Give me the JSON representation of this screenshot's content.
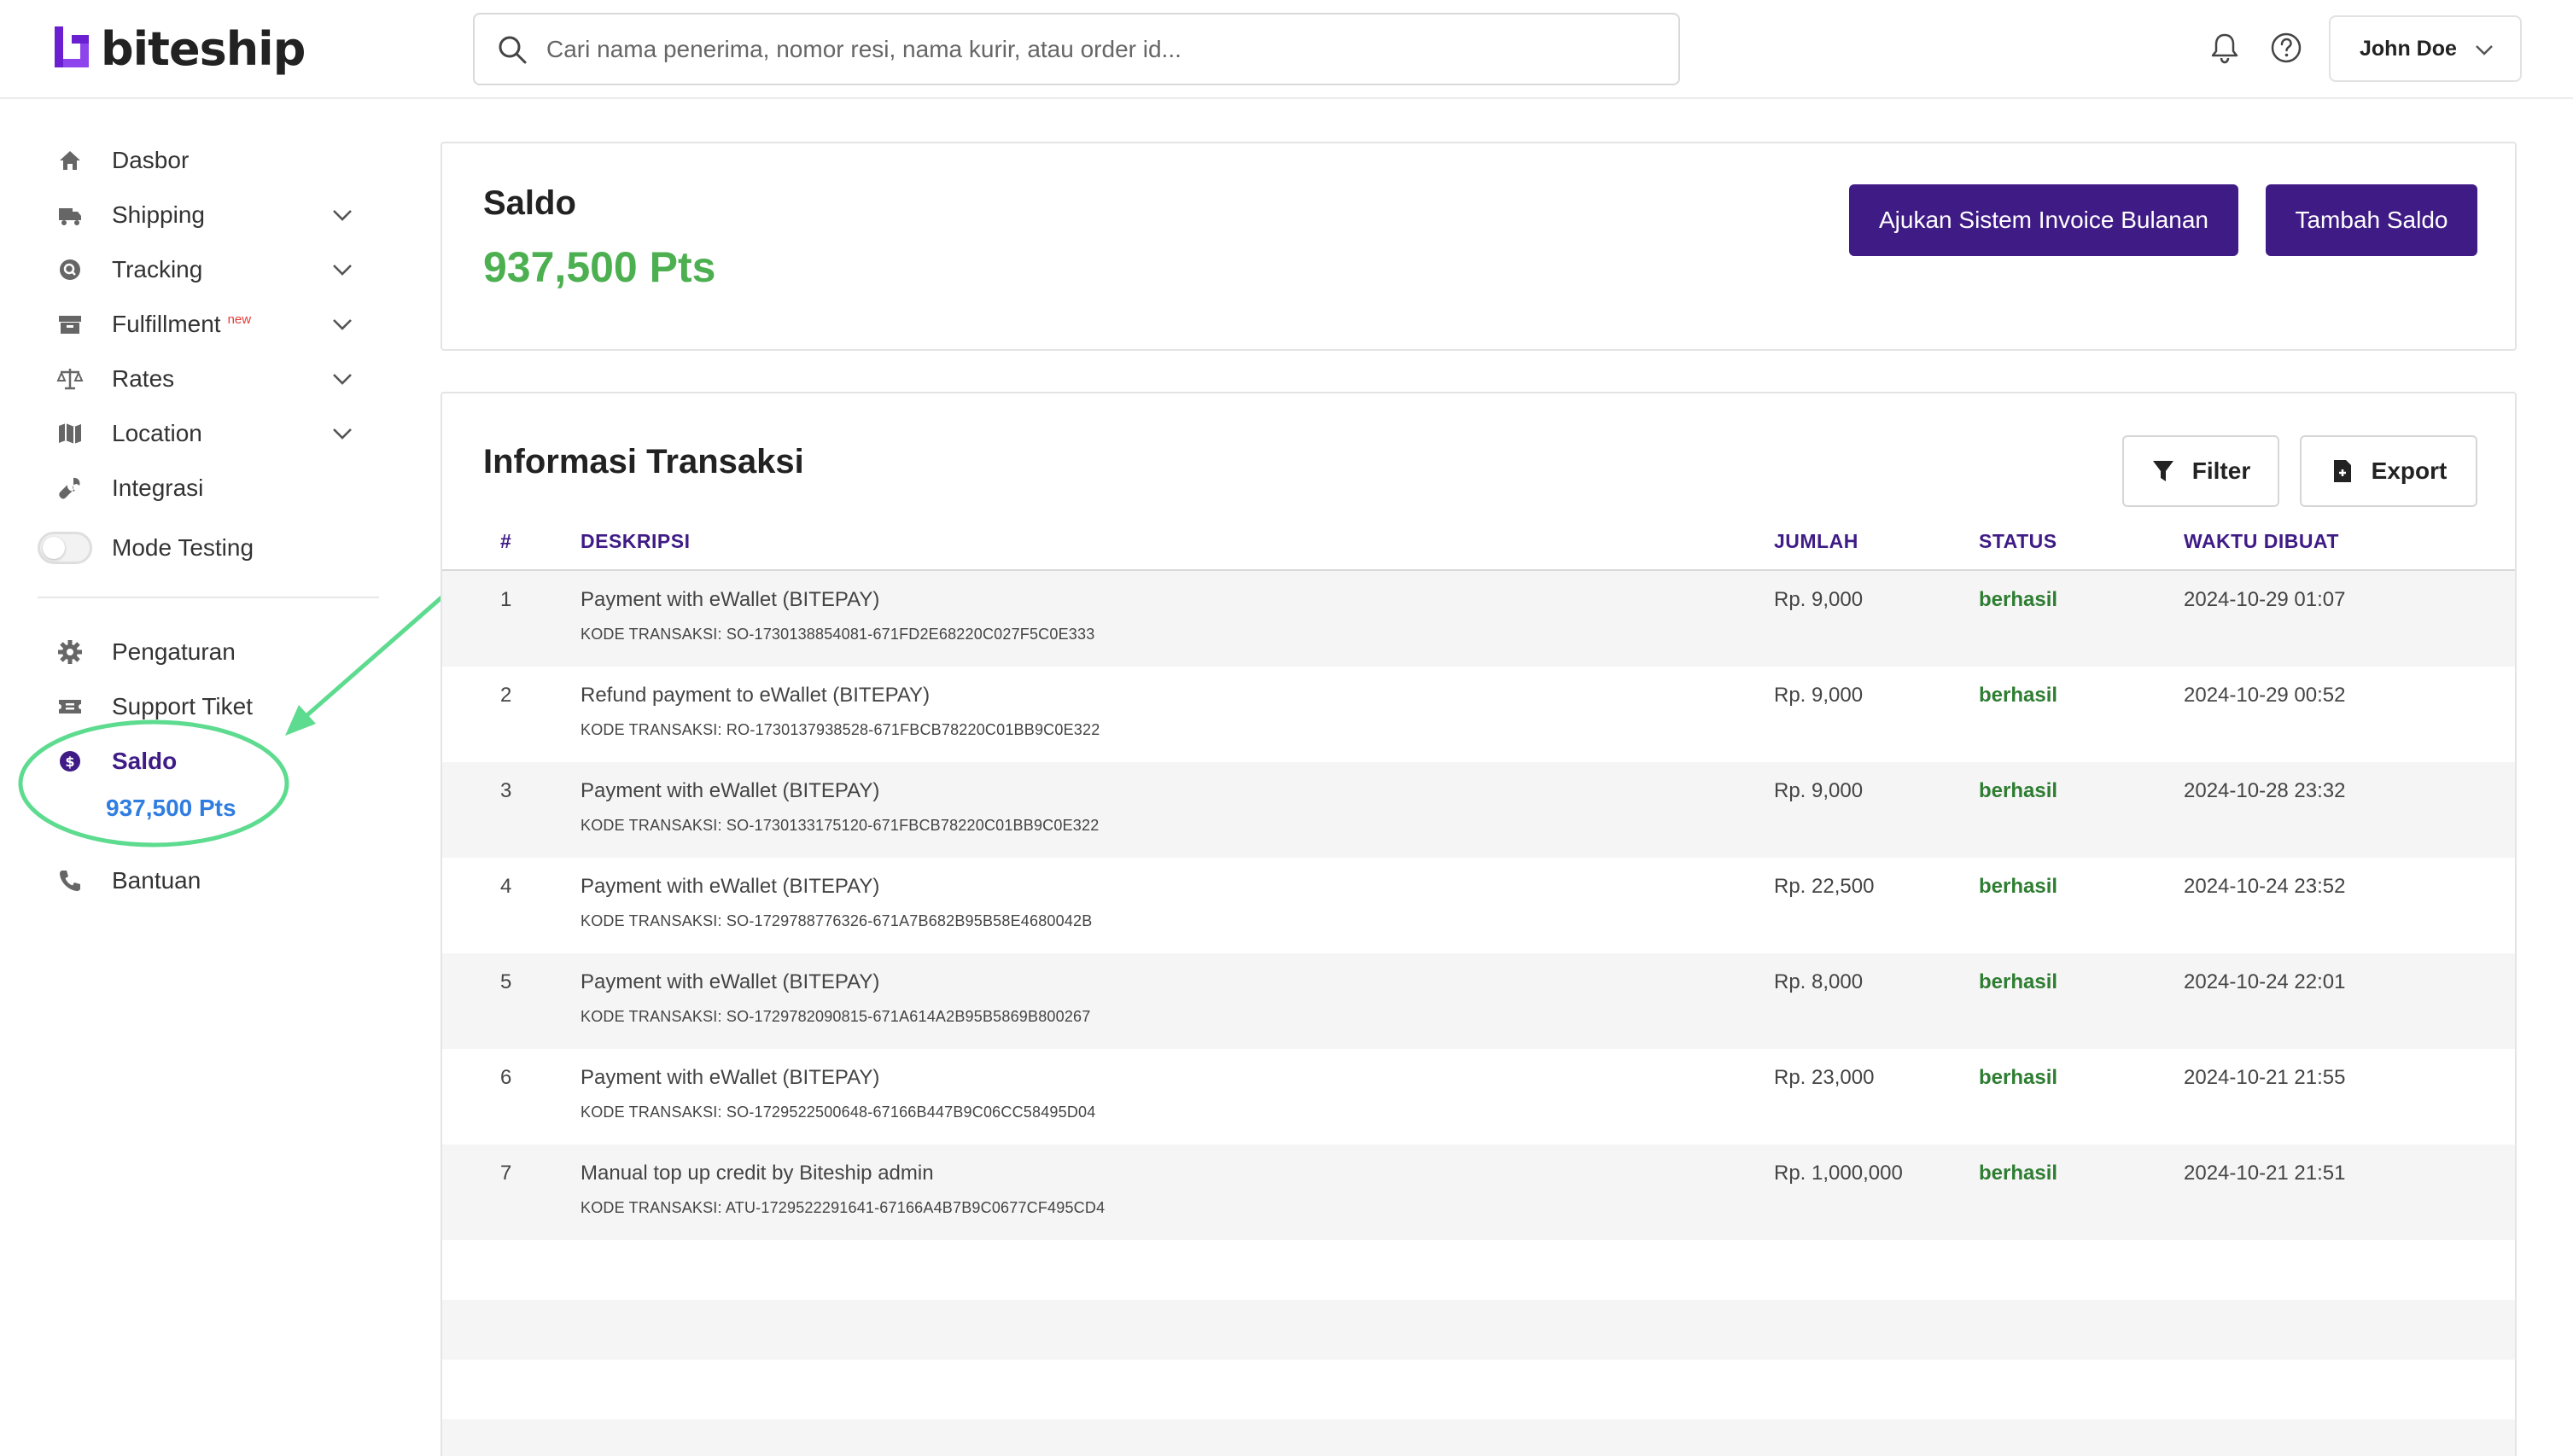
{
  "brand": {
    "name": "biteship",
    "accent": "#3f1b86",
    "logo_color": "#6a1fd0"
  },
  "search": {
    "placeholder": "Cari nama penerima, nomor resi, nama kurir, atau order id..."
  },
  "header": {
    "user_name": "John Doe"
  },
  "sidebar": {
    "items": [
      {
        "label": "Dasbor",
        "icon": "home-icon"
      },
      {
        "label": "Shipping",
        "icon": "truck-icon"
      },
      {
        "label": "Tracking",
        "icon": "tracking-icon"
      },
      {
        "label": "Fulfillment",
        "badge": "new",
        "icon": "archive-icon"
      },
      {
        "label": "Rates",
        "icon": "scale-icon"
      },
      {
        "label": "Location",
        "icon": "map-icon"
      },
      {
        "label": "Integrasi",
        "icon": "wrench-icon"
      },
      {
        "label": "Mode Testing",
        "icon": "toggle"
      }
    ],
    "bottom_items": [
      {
        "label": "Pengaturan",
        "icon": "gear-icon"
      },
      {
        "label": "Support Tiket",
        "icon": "ticket-icon"
      },
      {
        "label": "Saldo",
        "icon": "dollar-icon"
      },
      {
        "label": "Bantuan",
        "icon": "phone-icon"
      }
    ],
    "saldo_points": "937,500 Pts"
  },
  "balance": {
    "title": "Saldo",
    "amount": "937,500 Pts",
    "invoice_button": "Ajukan Sistem Invoice Bulanan",
    "topup_button": "Tambah Saldo"
  },
  "transactions": {
    "title": "Informasi Transaksi",
    "filter_label": "Filter",
    "export_label": "Export",
    "columns": [
      "#",
      "DESKRIPSI",
      "JUMLAH",
      "STATUS",
      "WAKTU DIBUAT"
    ],
    "rows": [
      {
        "no": "1",
        "desc": "Payment with eWallet (BITEPAY)",
        "code": "KODE TRANSAKSI: SO-1730138854081-671FD2E68220C027F5C0E333",
        "amount": "Rp. 9,000",
        "status": "berhasil",
        "time": "2024-10-29 01:07"
      },
      {
        "no": "2",
        "desc": "Refund payment to eWallet (BITEPAY)",
        "code": "KODE TRANSAKSI: RO-1730137938528-671FBCB78220C01BB9C0E322",
        "amount": "Rp. 9,000",
        "status": "berhasil",
        "time": "2024-10-29 00:52"
      },
      {
        "no": "3",
        "desc": "Payment with eWallet (BITEPAY)",
        "code": "KODE TRANSAKSI: SO-1730133175120-671FBCB78220C01BB9C0E322",
        "amount": "Rp. 9,000",
        "status": "berhasil",
        "time": "2024-10-28 23:32"
      },
      {
        "no": "4",
        "desc": "Payment with eWallet (BITEPAY)",
        "code": "KODE TRANSAKSI: SO-1729788776326-671A7B682B95B58E4680042B",
        "amount": "Rp. 22,500",
        "status": "berhasil",
        "time": "2024-10-24 23:52"
      },
      {
        "no": "5",
        "desc": "Payment with eWallet (BITEPAY)",
        "code": "KODE TRANSAKSI: SO-1729782090815-671A614A2B95B5869B800267",
        "amount": "Rp. 8,000",
        "status": "berhasil",
        "time": "2024-10-24 22:01"
      },
      {
        "no": "6",
        "desc": "Payment with eWallet (BITEPAY)",
        "code": "KODE TRANSAKSI: SO-1729522500648-67166B447B9C06CC58495D04",
        "amount": "Rp. 23,000",
        "status": "berhasil",
        "time": "2024-10-21 21:55"
      },
      {
        "no": "7",
        "desc": "Manual top up credit by Biteship admin",
        "code": "KODE TRANSAKSI: ATU-1729522291641-67166A4B7B9C0677CF495CD4",
        "amount": "Rp. 1,000,000",
        "status": "berhasil",
        "time": "2024-10-21 21:51"
      }
    ]
  },
  "colors": {
    "success": "#2e7d32",
    "balance_green": "#4caf50",
    "points_blue": "#2f7de1",
    "annotation": "#5ddb8f"
  }
}
